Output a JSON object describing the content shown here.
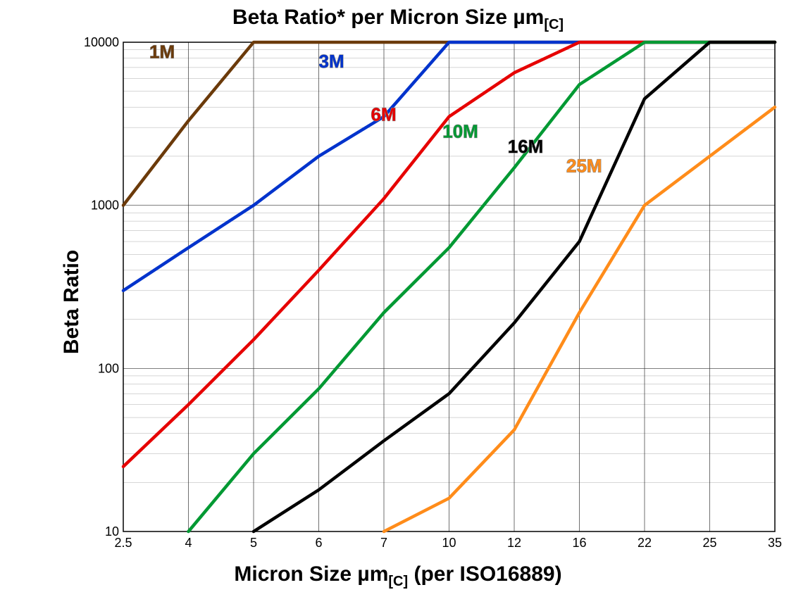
{
  "title_main": "Beta Ratio* per Micron Size µm",
  "title_sub": "[C]",
  "xlabel_main": "Micron Size µm",
  "xlabel_sub": "[C]",
  "xlabel_suffix": " (per ISO16889)",
  "ylabel": "Beta Ratio",
  "chart": {
    "type": "line",
    "yscale": "log",
    "ylim": [
      10,
      10000
    ],
    "ytick_labels": [
      "10",
      "100",
      "1000",
      "10000"
    ],
    "ytick_values": [
      10,
      100,
      1000,
      10000
    ],
    "xticks": [
      2.5,
      4,
      5,
      6,
      7,
      10,
      12,
      16,
      22,
      25,
      35
    ],
    "xtick_labels": [
      "2.5",
      "4",
      "5",
      "6",
      "7",
      "10",
      "12",
      "16",
      "22",
      "25",
      "35"
    ],
    "background_color": "#ffffff",
    "grid_color": "#333333",
    "grid_width": 0.7,
    "border_color": "#000000",
    "border_width": 1.5,
    "line_width": 4.5,
    "series": [
      {
        "label": "1M",
        "color": "#6b3a0a",
        "label_pos_xi": 0.4,
        "label_pos_y": 8000,
        "points": [
          {
            "xi": 0,
            "y": 1000
          },
          {
            "xi": 1,
            "y": 3300
          },
          {
            "xi": 2,
            "y": 10000
          },
          {
            "xi": 10,
            "y": 10000
          }
        ]
      },
      {
        "label": "3M",
        "color": "#0033cc",
        "label_pos_xi": 3.0,
        "label_pos_y": 7000,
        "points": [
          {
            "xi": 0,
            "y": 300
          },
          {
            "xi": 1,
            "y": 550
          },
          {
            "xi": 2,
            "y": 1000
          },
          {
            "xi": 3,
            "y": 2000
          },
          {
            "xi": 4,
            "y": 3500
          },
          {
            "xi": 5,
            "y": 10000
          },
          {
            "xi": 10,
            "y": 10000
          }
        ]
      },
      {
        "label": "6M",
        "color": "#e60000",
        "label_pos_xi": 3.8,
        "label_pos_y": 3300,
        "points": [
          {
            "xi": 0,
            "y": 25
          },
          {
            "xi": 1,
            "y": 60
          },
          {
            "xi": 2,
            "y": 150
          },
          {
            "xi": 3,
            "y": 400
          },
          {
            "xi": 4,
            "y": 1100
          },
          {
            "xi": 5,
            "y": 3500
          },
          {
            "xi": 6,
            "y": 6500
          },
          {
            "xi": 7,
            "y": 10000
          },
          {
            "xi": 10,
            "y": 10000
          }
        ]
      },
      {
        "label": "10M",
        "color": "#009933",
        "label_pos_xi": 4.9,
        "label_pos_y": 2600,
        "points": [
          {
            "xi": 1,
            "y": 10
          },
          {
            "xi": 2,
            "y": 30
          },
          {
            "xi": 3,
            "y": 75
          },
          {
            "xi": 4,
            "y": 220
          },
          {
            "xi": 5,
            "y": 550
          },
          {
            "xi": 6,
            "y": 1700
          },
          {
            "xi": 7,
            "y": 5500
          },
          {
            "xi": 8,
            "y": 10000
          },
          {
            "xi": 10,
            "y": 10000
          }
        ]
      },
      {
        "label": "16M",
        "color": "#000000",
        "label_pos_xi": 5.9,
        "label_pos_y": 2100,
        "points": [
          {
            "xi": 2,
            "y": 10
          },
          {
            "xi": 3,
            "y": 18
          },
          {
            "xi": 4,
            "y": 36
          },
          {
            "xi": 5,
            "y": 70
          },
          {
            "xi": 6,
            "y": 190
          },
          {
            "xi": 7,
            "y": 600
          },
          {
            "xi": 8,
            "y": 4500
          },
          {
            "xi": 9,
            "y": 10000
          },
          {
            "xi": 10,
            "y": 10000
          }
        ]
      },
      {
        "label": "25M",
        "color": "#ff8c1a",
        "label_pos_xi": 6.8,
        "label_pos_y": 1600,
        "points": [
          {
            "xi": 4,
            "y": 10
          },
          {
            "xi": 5,
            "y": 16
          },
          {
            "xi": 6,
            "y": 42
          },
          {
            "xi": 7,
            "y": 220
          },
          {
            "xi": 8,
            "y": 1000
          },
          {
            "xi": 9,
            "y": 2000
          },
          {
            "xi": 10,
            "y": 4000
          }
        ]
      }
    ]
  }
}
